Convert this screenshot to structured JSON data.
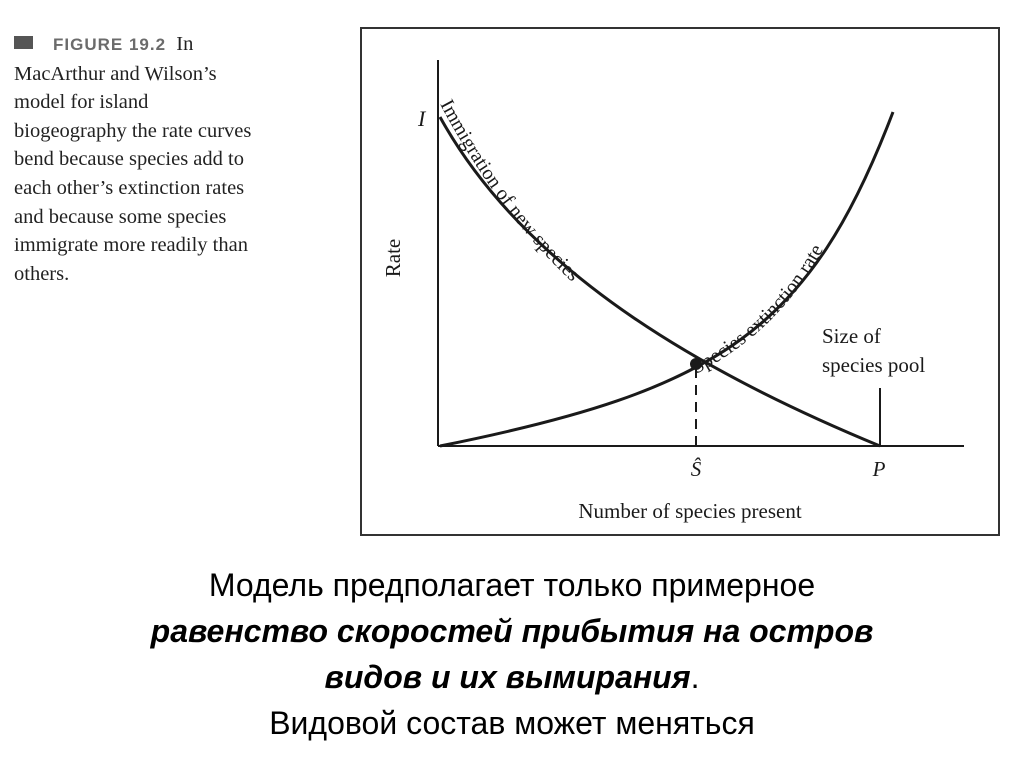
{
  "caption": {
    "figure_label": "FIGURE 19.2",
    "lines": [
      "In",
      "MacArthur and Wilson’s",
      "model for island",
      "biogeography the rate curves",
      "bend because species add to",
      "each other’s extinction rates",
      "and because some species",
      "immigrate more readily than",
      "others."
    ]
  },
  "diagram": {
    "y_axis_label": "Rate",
    "x_axis_label": "Number of species present",
    "y_marker_label": "I",
    "equilibrium_label": "Ŝ",
    "pool_label": "P",
    "immigration_curve_label": "Immigration of new species",
    "extinction_curve_label": "Species extinction rate",
    "pool_annotation_line1": "Size of",
    "pool_annotation_line2": "species pool",
    "colors": {
      "ink": "#1a1a1a",
      "frame": "#333333"
    }
  },
  "slide_text": {
    "line1": "Модель предполагает только примерное",
    "line2_emphasis": "равенство скоростей прибытия на остров",
    "line3_emphasis": "видов и их вымирания",
    "line3_suffix": ".",
    "line4": "Видовой состав может меняться"
  }
}
